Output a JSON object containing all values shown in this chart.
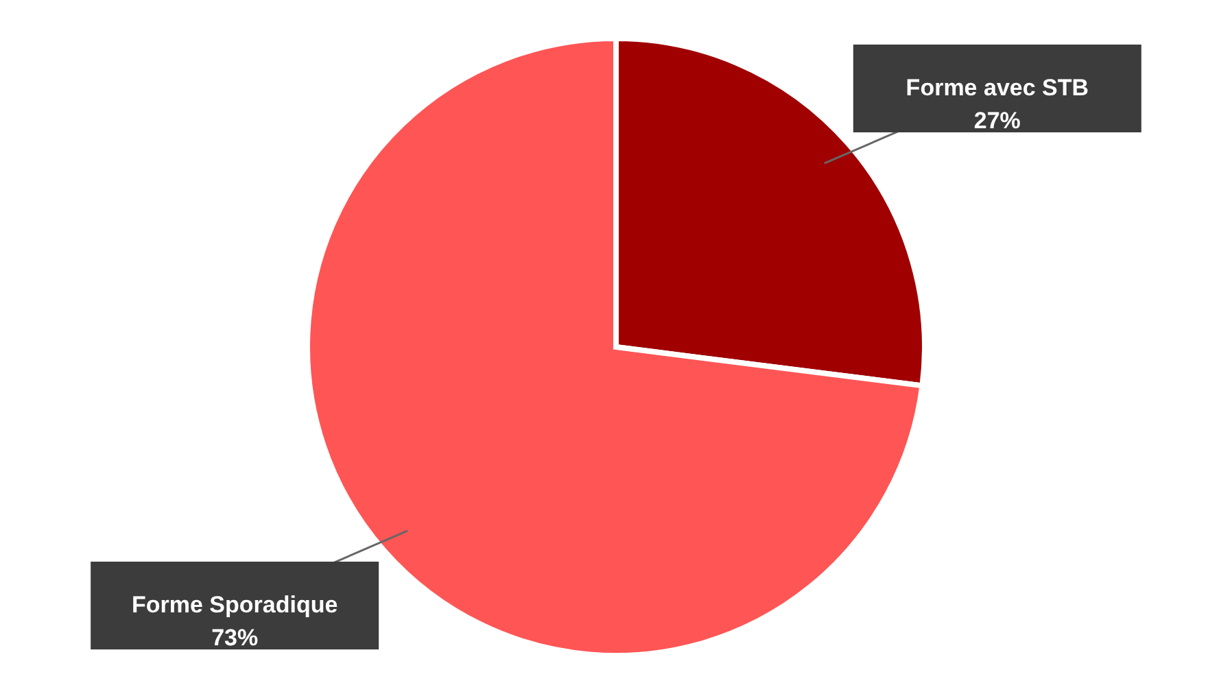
{
  "chart_data": {
    "type": "pie",
    "categories": [
      "Forme avec STB",
      "Forme Sporadique"
    ],
    "values": [
      27,
      73
    ],
    "colors": [
      "#a00000",
      "#ff5555"
    ],
    "value_labels": [
      "27%",
      "73%"
    ]
  }
}
